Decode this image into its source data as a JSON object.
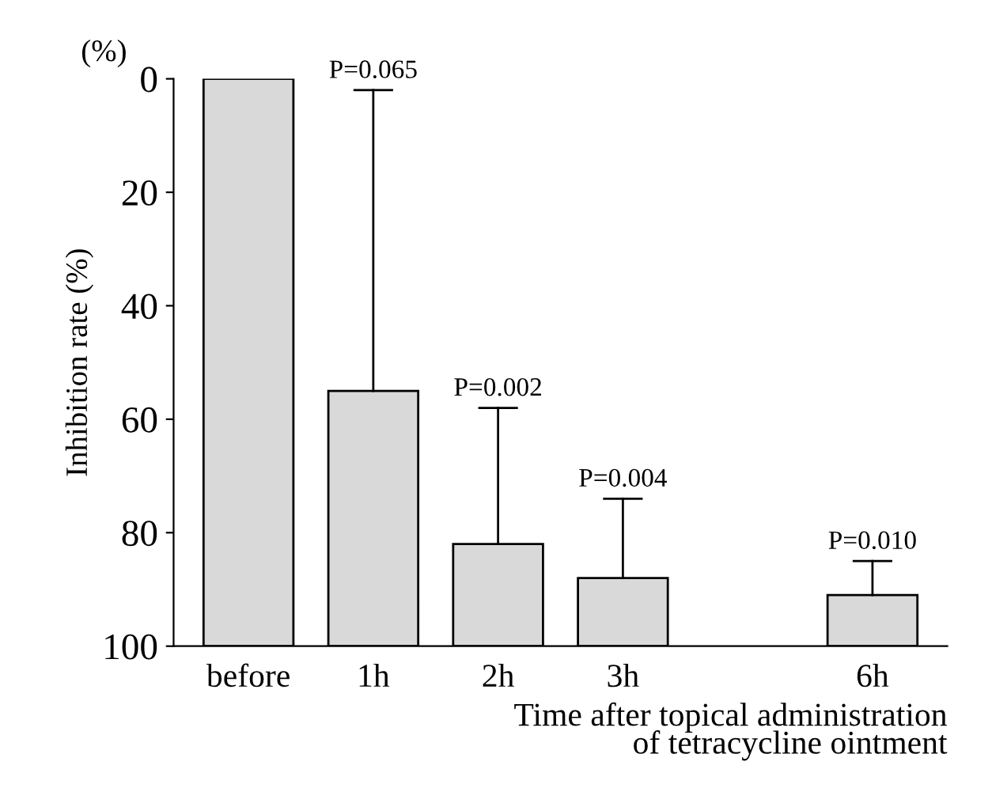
{
  "chart_data": {
    "type": "bar",
    "categories": [
      "before",
      "1h",
      "2h",
      "3h",
      null,
      "6h"
    ],
    "base": [
      100,
      100,
      100,
      100,
      null,
      100
    ],
    "values": [
      -100,
      -45,
      -18,
      -12,
      null,
      -9
    ],
    "errors": [
      null,
      [
        2,
        55
      ],
      [
        58,
        82
      ],
      [
        74,
        88
      ],
      null,
      [
        85,
        91
      ]
    ],
    "color": "#d9d9d9",
    "ylabel": "Inhibition rate (%)",
    "xlabel": "Time after topical administration\nof tetracycline ointment",
    "ylim": [
      100,
      0
    ],
    "yticks": [
      0,
      20,
      40,
      60,
      80,
      100
    ],
    "grid": false,
    "annotations": [
      "(%)",
      "P=0.065",
      "P=0.002",
      "P=0.004",
      "P=0.010"
    ]
  }
}
